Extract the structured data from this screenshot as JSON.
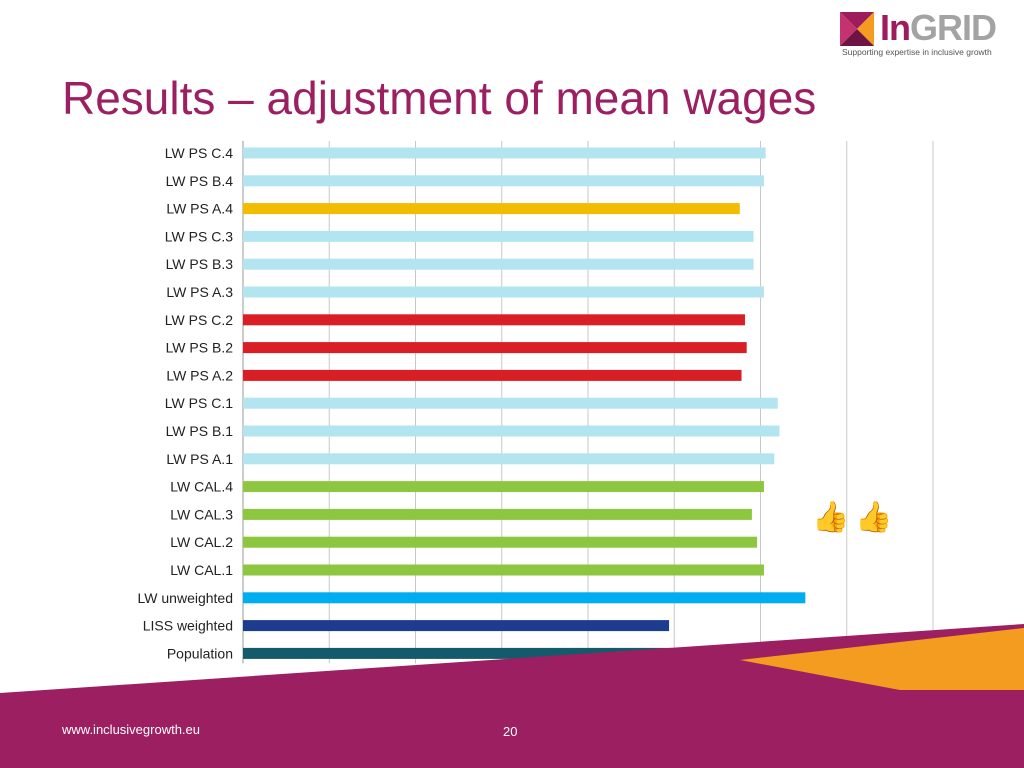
{
  "logo": {
    "word_in": "In",
    "word_grid": "GRID",
    "tagline": "Supporting expertise in inclusive growth"
  },
  "title": "Results – adjustment of mean wages",
  "footer": {
    "url": "www.inclusivegrowth.eu",
    "slide_number": "20"
  },
  "icons": {
    "thumbs": "thumbs-up-icon"
  },
  "colors": {
    "brand": "#9c1f61",
    "light_blue": "#b3e5f0",
    "yellow": "#f2bc00",
    "red": "#d91e25",
    "green": "#8dc63f",
    "sky_blue": "#00aeef",
    "navy": "#1d3c8f",
    "teal": "#135a6a",
    "footer_orange": "#f39c1f"
  },
  "chart_data": {
    "type": "bar",
    "orientation": "horizontal",
    "categories": [
      "LW PS C.4",
      "LW PS B.4",
      "LW PS A.4",
      "LW PS C.3",
      "LW PS B.3",
      "LW PS A.3",
      "LW PS C.2",
      "LW PS B.2",
      "LW PS A.2",
      "LW PS C.1",
      "LW PS B.1",
      "LW PS A.1",
      "LW CAL.4",
      "LW CAL.3",
      "LW CAL.2",
      "LW CAL.1",
      "LW unweighted",
      "LISS weighted",
      "Population"
    ],
    "category_labels": [
      "LW PS C.4",
      "LW PS B.4",
      "LW PS A.4",
      "LW PS C.3",
      "LW PS B.3",
      "LW PS A.3",
      "LW PS C.2",
      "LW PS B.2",
      "LW PS A.2",
      "LW PS C.1",
      "LW PS B.1",
      "LW PS A.1",
      "LW CAL.4",
      "LW CAL.3",
      "LW CAL.2",
      "LW CAL.1",
      "LW unweighted",
      "LISS weighted",
      "Population"
    ],
    "values": [
      3030,
      3020,
      2880,
      2960,
      2960,
      3020,
      2910,
      2920,
      2890,
      3100,
      3110,
      3080,
      3020,
      2950,
      2980,
      3020,
      3260,
      2470,
      2490
    ],
    "bar_colors": [
      "light_blue",
      "light_blue",
      "yellow",
      "light_blue",
      "light_blue",
      "light_blue",
      "red",
      "red",
      "red",
      "light_blue",
      "light_blue",
      "light_blue",
      "green",
      "green",
      "green",
      "green",
      "sky_blue",
      "navy",
      "teal"
    ],
    "xlim": [
      0,
      4000
    ],
    "xticks": [
      0,
      500,
      1000,
      1500,
      2000,
      2500,
      3000,
      3500,
      4000
    ],
    "xtick_labels": [
      "0",
      "500",
      "1000",
      "1500",
      "2000",
      "2500",
      "3000",
      "3500",
      "4000"
    ],
    "xlabel": "",
    "ylabel": "",
    "grid": true,
    "legend": false
  }
}
